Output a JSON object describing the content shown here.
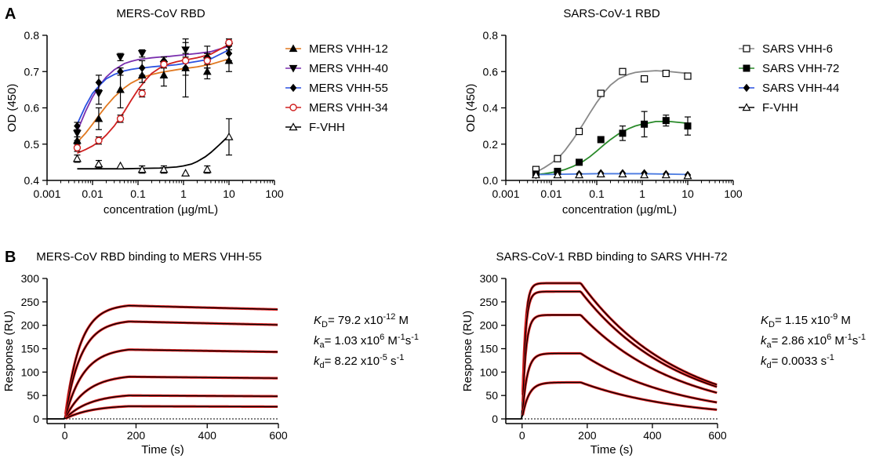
{
  "panel_letters": [
    "A",
    "B"
  ],
  "kinetics": [
    {
      "kd_sym": "K",
      "kd_sub": "D",
      "kd_val": "= 79.2 x10",
      "kd_exp": "-12",
      "kd_unit": " M",
      "ka_sym": "k",
      "ka_sub": "a",
      "ka_val": "= 1.03 x10",
      "ka_exp": "6",
      "ka_unit1": " M",
      "ka_exp2": "-1",
      "ka_unit2": "s",
      "ka_exp3": "-1",
      "koff_sym": "k",
      "koff_sub": "d",
      "koff_val": "= 8.22 x10",
      "koff_exp": "-5",
      "koff_unit": " s",
      "koff_exp2": "-1"
    },
    {
      "kd_sym": "K",
      "kd_sub": "D",
      "kd_val": "= 1.15 x10",
      "kd_exp": "-9",
      "kd_unit": " M",
      "ka_sym": "k",
      "ka_sub": "a",
      "ka_val": "= 2.86 x10",
      "ka_exp": "6",
      "ka_unit1": " M",
      "ka_exp2": "-1",
      "ka_unit2": "s",
      "ka_exp3": "-1",
      "koff_sym": "k",
      "koff_sub": "d",
      "koff_val": "= 0.0033 s",
      "koff_exp": "-1",
      "koff_unit": "",
      "koff_exp2": ""
    }
  ],
  "chart_data": [
    {
      "type": "scatter",
      "title": "MERS-CoV RBD",
      "xlabel": "concentration (µg/mL)",
      "ylabel": "OD (450)",
      "xscale": "log",
      "xlim": [
        0.001,
        100
      ],
      "ylim": [
        0.4,
        0.8
      ],
      "xticks": [
        "0.001",
        "0.01",
        "0.1",
        "1",
        "10",
        "100"
      ],
      "yticks": [
        "0.4",
        "0.5",
        "0.6",
        "0.7",
        "0.8"
      ],
      "legend_position": "right",
      "series": [
        {
          "name": "MERS VHH-12",
          "marker": "triangle-up",
          "color": "#e07820",
          "x": [
            0.0046,
            0.0137,
            0.041,
            0.123,
            0.37,
            1.11,
            3.33,
            10
          ],
          "y": [
            0.51,
            0.57,
            0.65,
            0.69,
            0.69,
            0.71,
            0.7,
            0.73
          ],
          "err": [
            0.01,
            0.03,
            0.05,
            0.02,
            0.03,
            0.02,
            0.02,
            0.03
          ]
        },
        {
          "name": "MERS VHH-40",
          "marker": "triangle-down",
          "color": "#7a2fae",
          "x": [
            0.0046,
            0.0137,
            0.041,
            0.123,
            0.37,
            1.11,
            3.33,
            10
          ],
          "y": [
            0.53,
            0.64,
            0.74,
            0.75,
            0.72,
            0.76,
            0.73,
            0.77
          ],
          "err": [
            0.02,
            0.03,
            0.01,
            0.01,
            0.01,
            0.02,
            0.02,
            0.02
          ]
        },
        {
          "name": "MERS VHH-55",
          "marker": "diamond",
          "color": "#2a50e0",
          "x": [
            0.0046,
            0.0137,
            0.041,
            0.123,
            0.37,
            1.11,
            3.33,
            10
          ],
          "y": [
            0.55,
            0.67,
            0.7,
            0.71,
            0.73,
            0.71,
            0.74,
            0.75
          ],
          "err": [
            0.01,
            0.02,
            0.01,
            0.02,
            0.01,
            0.08,
            0.03,
            0.02
          ]
        },
        {
          "name": "MERS VHH-34",
          "marker": "circle-open",
          "color": "#d02020",
          "x": [
            0.0046,
            0.0137,
            0.041,
            0.123,
            0.37,
            1.11,
            3.33,
            10
          ],
          "y": [
            0.49,
            0.51,
            0.57,
            0.64,
            0.72,
            0.73,
            0.73,
            0.78
          ],
          "err": [
            0.01,
            0.01,
            0.01,
            0.01,
            0.01,
            0.02,
            0.02,
            0.01
          ]
        },
        {
          "name": "F-VHH",
          "marker": "triangle-open",
          "color": "#000000",
          "x": [
            0.0046,
            0.0137,
            0.041,
            0.123,
            0.37,
            1.11,
            3.33,
            10
          ],
          "y": [
            0.46,
            0.445,
            0.44,
            0.43,
            0.43,
            0.42,
            0.43,
            0.52
          ],
          "err": [
            0.01,
            0.01,
            0.0,
            0.01,
            0.01,
            0.0,
            0.01,
            0.05
          ]
        }
      ],
      "fits": [
        {
          "color": "#e07820",
          "x": [
            0.0046,
            0.007,
            0.01,
            0.015,
            0.02,
            0.03,
            0.05,
            0.07,
            0.1,
            0.15,
            0.2,
            0.3,
            0.5,
            0.7,
            1,
            2,
            4,
            10
          ],
          "y": [
            0.505,
            0.53,
            0.555,
            0.585,
            0.605,
            0.63,
            0.655,
            0.668,
            0.678,
            0.687,
            0.692,
            0.697,
            0.702,
            0.705,
            0.708,
            0.713,
            0.72,
            0.735
          ]
        },
        {
          "color": "#7a2fae",
          "x": [
            0.0046,
            0.007,
            0.01,
            0.015,
            0.02,
            0.03,
            0.05,
            0.07,
            0.1,
            0.15,
            0.2,
            0.3,
            0.5,
            0.7,
            1,
            2,
            4,
            10
          ],
          "y": [
            0.535,
            0.59,
            0.63,
            0.665,
            0.685,
            0.705,
            0.722,
            0.728,
            0.733,
            0.736,
            0.738,
            0.74,
            0.742,
            0.744,
            0.746,
            0.75,
            0.755,
            0.77
          ]
        },
        {
          "color": "#2a50e0",
          "x": [
            0.0046,
            0.007,
            0.01,
            0.015,
            0.02,
            0.03,
            0.05,
            0.07,
            0.1,
            0.15,
            0.2,
            0.3,
            0.5,
            0.7,
            1,
            2,
            4,
            10
          ],
          "y": [
            0.555,
            0.605,
            0.64,
            0.665,
            0.68,
            0.692,
            0.702,
            0.706,
            0.709,
            0.711,
            0.713,
            0.715,
            0.717,
            0.719,
            0.722,
            0.728,
            0.735,
            0.76
          ]
        },
        {
          "color": "#d02020",
          "x": [
            0.0046,
            0.007,
            0.01,
            0.015,
            0.02,
            0.03,
            0.05,
            0.07,
            0.1,
            0.15,
            0.2,
            0.3,
            0.5,
            0.7,
            1,
            2,
            4,
            10
          ],
          "y": [
            0.475,
            0.485,
            0.495,
            0.51,
            0.525,
            0.55,
            0.59,
            0.62,
            0.65,
            0.678,
            0.695,
            0.71,
            0.722,
            0.727,
            0.731,
            0.738,
            0.748,
            0.775
          ]
        },
        {
          "color": "#000000",
          "x": [
            0.0046,
            0.01,
            0.05,
            0.1,
            0.3,
            0.7,
            1,
            1.5,
            2,
            3,
            4,
            5,
            6,
            7,
            8,
            9,
            10
          ],
          "y": [
            0.432,
            0.432,
            0.432,
            0.433,
            0.434,
            0.437,
            0.44,
            0.445,
            0.452,
            0.465,
            0.477,
            0.488,
            0.497,
            0.505,
            0.512,
            0.518,
            0.524
          ]
        }
      ]
    },
    {
      "type": "scatter",
      "title": "SARS-CoV-1 RBD",
      "xlabel": "concentration (µg/mL)",
      "ylabel": "OD (450)",
      "xscale": "log",
      "xlim": [
        0.001,
        100
      ],
      "ylim": [
        0.0,
        0.8
      ],
      "xticks": [
        "0.001",
        "0.01",
        "0.1",
        "1",
        "10",
        "100"
      ],
      "yticks": [
        "0.0",
        "0.2",
        "0.4",
        "0.6",
        "0.8"
      ],
      "legend_position": "right",
      "series": [
        {
          "name": "SARS VHH-6",
          "marker": "square-open",
          "color": "#000000",
          "x": [
            0.0046,
            0.0137,
            0.041,
            0.123,
            0.37,
            1.11,
            3.33,
            10
          ],
          "y": [
            0.06,
            0.12,
            0.27,
            0.48,
            0.6,
            0.56,
            0.59,
            0.575
          ],
          "err": [
            0.01,
            0.01,
            0.01,
            0.01,
            0.01,
            0.01,
            0.01,
            0.01
          ]
        },
        {
          "name": "SARS VHH-72",
          "marker": "square",
          "color": "#000000",
          "x": [
            0.0046,
            0.0137,
            0.041,
            0.123,
            0.37,
            1.11,
            3.33,
            10
          ],
          "y": [
            0.035,
            0.05,
            0.1,
            0.225,
            0.26,
            0.31,
            0.33,
            0.3
          ],
          "err": [
            0.0,
            0.0,
            0.0,
            0.01,
            0.04,
            0.07,
            0.03,
            0.05
          ]
        },
        {
          "name": "SARS VHH-44",
          "marker": "diamond",
          "color": "#2a50e0",
          "x": [
            0.0046,
            0.0137,
            0.041,
            0.123,
            0.37,
            1.11,
            3.33,
            10
          ],
          "y": [
            0.03,
            0.035,
            0.035,
            0.04,
            0.04,
            0.04,
            0.035,
            0.03
          ],
          "err": [
            0.0,
            0.0,
            0.0,
            0.0,
            0.0,
            0.0,
            0.0,
            0.0
          ]
        },
        {
          "name": "F-VHH",
          "marker": "triangle-open",
          "color": "#000000",
          "x": [
            0.0046,
            0.0137,
            0.041,
            0.123,
            0.37,
            1.11,
            3.33,
            10
          ],
          "y": [
            0.03,
            0.03,
            0.03,
            0.035,
            0.035,
            0.03,
            0.03,
            0.025
          ],
          "err": [
            0.0,
            0.0,
            0.0,
            0.0,
            0.0,
            0.0,
            0.0,
            0.0
          ]
        }
      ],
      "fits": [
        {
          "color": "#888888",
          "x": [
            0.0046,
            0.007,
            0.01,
            0.015,
            0.02,
            0.03,
            0.05,
            0.07,
            0.1,
            0.15,
            0.2,
            0.3,
            0.5,
            0.7,
            1,
            2,
            4,
            10
          ],
          "y": [
            0.045,
            0.07,
            0.095,
            0.13,
            0.165,
            0.225,
            0.31,
            0.37,
            0.43,
            0.49,
            0.525,
            0.56,
            0.585,
            0.595,
            0.6,
            0.605,
            0.6,
            0.59
          ]
        },
        {
          "color": "#2a8a2a",
          "x": [
            0.0046,
            0.007,
            0.01,
            0.015,
            0.02,
            0.03,
            0.05,
            0.07,
            0.1,
            0.15,
            0.2,
            0.3,
            0.5,
            0.7,
            1,
            2,
            4,
            10
          ],
          "y": [
            0.032,
            0.037,
            0.043,
            0.052,
            0.06,
            0.077,
            0.105,
            0.13,
            0.162,
            0.2,
            0.225,
            0.256,
            0.285,
            0.3,
            0.31,
            0.325,
            0.325,
            0.315
          ]
        },
        {
          "color": "#4a7ae0",
          "x": [
            0.0046,
            0.1,
            1,
            10
          ],
          "y": [
            0.032,
            0.037,
            0.037,
            0.033
          ]
        }
      ]
    },
    {
      "type": "line",
      "title": "MERS-CoV RBD binding to MERS VHH-55",
      "xlabel": "Time (s)",
      "ylabel": "Response (RU)",
      "xlim": [
        -50,
        600
      ],
      "ylim": [
        -10,
        300
      ],
      "xticks": [
        "0",
        "200",
        "400",
        "600"
      ],
      "yticks": [
        "0",
        "50",
        "100",
        "150",
        "200",
        "250",
        "300"
      ],
      "association_end": 180,
      "ka": 1030000,
      "koff": 8.22e-05,
      "max_response": [
        242,
        208,
        148,
        90,
        50,
        27
      ],
      "colors": {
        "data": "#000000",
        "fit": "#e02020"
      }
    },
    {
      "type": "line",
      "title": "SARS-CoV-1 RBD binding to SARS VHH-72",
      "xlabel": "Time (s)",
      "ylabel": "Response (RU)",
      "xlim": [
        -50,
        600
      ],
      "ylim": [
        -10,
        300
      ],
      "xticks": [
        "0",
        "200",
        "400",
        "600"
      ],
      "yticks": [
        "0",
        "50",
        "100",
        "150",
        "200",
        "250",
        "300"
      ],
      "association_end": 180,
      "ka": 2860000,
      "koff": 0.0033,
      "max_response": [
        290,
        272,
        222,
        140,
        78
      ],
      "colors": {
        "data": "#000000",
        "fit": "#e02020"
      }
    }
  ]
}
